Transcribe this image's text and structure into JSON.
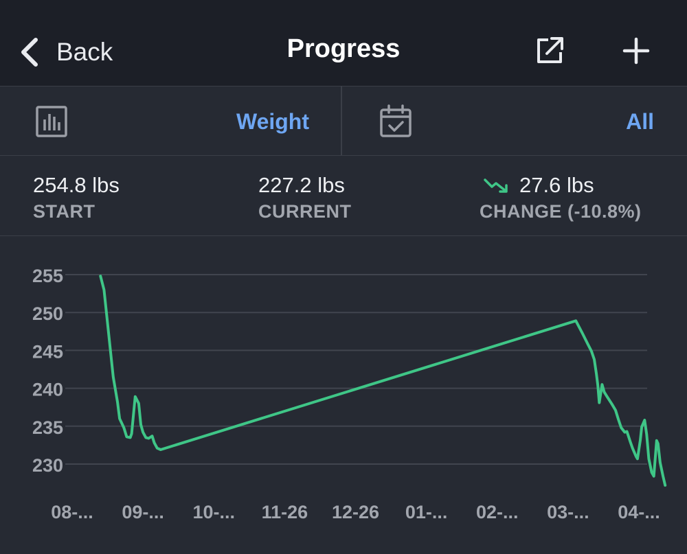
{
  "nav": {
    "back_label": "Back",
    "title": "Progress",
    "icons": {
      "back": "chevron-left-icon",
      "share": "share-external-icon",
      "add": "plus-icon"
    }
  },
  "filters": {
    "metric": {
      "value": "Weight",
      "icon": "bar-chart-icon"
    },
    "range": {
      "value": "All",
      "icon": "calendar-check-icon"
    }
  },
  "stats": {
    "start": {
      "value": "254.8 lbs",
      "label": "START"
    },
    "current": {
      "value": "227.2 lbs",
      "label": "CURRENT"
    },
    "change": {
      "value": "27.6 lbs",
      "label": "CHANGE (-10.8%)",
      "icon": "trend-down-icon"
    }
  },
  "colors": {
    "accent": "#6ea6f2",
    "line": "#3fc687",
    "background": "#262a33",
    "header": "#1c1f27"
  },
  "chart_data": {
    "type": "line",
    "title": "",
    "xlabel": "",
    "ylabel": "",
    "ylim": [
      226,
      256
    ],
    "yticks": [
      255,
      250,
      245,
      240,
      235,
      230
    ],
    "x_tick_labels": [
      "08-...",
      "09-...",
      "10-...",
      "11-26",
      "12-26",
      "01-...",
      "02-...",
      "03-...",
      "04-..."
    ],
    "x_tick_positions": [
      0.0,
      1.0,
      2.0,
      3.0,
      4.0,
      5.0,
      6.0,
      7.0,
      8.0
    ],
    "xlim": [
      0.4,
      8.4
    ],
    "series": [
      {
        "name": "Weight",
        "points": [
          [
            0.4,
            254.8
          ],
          [
            0.45,
            253.0
          ],
          [
            0.58,
            241.5
          ],
          [
            0.64,
            238.2
          ],
          [
            0.67,
            236.0
          ],
          [
            0.73,
            234.8
          ],
          [
            0.77,
            233.6
          ],
          [
            0.82,
            233.5
          ],
          [
            0.84,
            234.0
          ],
          [
            0.89,
            238.9
          ],
          [
            0.94,
            238.0
          ],
          [
            0.97,
            235.2
          ],
          [
            1.0,
            234.2
          ],
          [
            1.04,
            233.5
          ],
          [
            1.08,
            233.4
          ],
          [
            1.13,
            233.7
          ],
          [
            1.16,
            232.8
          ],
          [
            1.2,
            232.1
          ],
          [
            1.25,
            231.9
          ],
          [
            7.11,
            248.9
          ],
          [
            7.2,
            247.3
          ],
          [
            7.28,
            245.8
          ],
          [
            7.33,
            244.9
          ],
          [
            7.37,
            243.8
          ],
          [
            7.4,
            241.9
          ],
          [
            7.42,
            240.4
          ],
          [
            7.44,
            238.1
          ],
          [
            7.48,
            240.5
          ],
          [
            7.51,
            239.5
          ],
          [
            7.55,
            238.9
          ],
          [
            7.62,
            237.9
          ],
          [
            7.67,
            237.1
          ],
          [
            7.71,
            235.9
          ],
          [
            7.75,
            234.8
          ],
          [
            7.8,
            234.2
          ],
          [
            7.83,
            234.3
          ],
          [
            7.88,
            232.9
          ],
          [
            7.91,
            232.1
          ],
          [
            7.96,
            231.0
          ],
          [
            7.98,
            230.7
          ],
          [
            8.02,
            233.2
          ],
          [
            8.04,
            234.9
          ],
          [
            8.08,
            235.8
          ],
          [
            8.11,
            233.9
          ],
          [
            8.14,
            230.7
          ],
          [
            8.18,
            228.9
          ],
          [
            8.21,
            228.4
          ],
          [
            8.25,
            233.1
          ],
          [
            8.27,
            232.7
          ],
          [
            8.3,
            230.2
          ],
          [
            8.34,
            228.4
          ],
          [
            8.37,
            227.2
          ]
        ]
      }
    ]
  }
}
